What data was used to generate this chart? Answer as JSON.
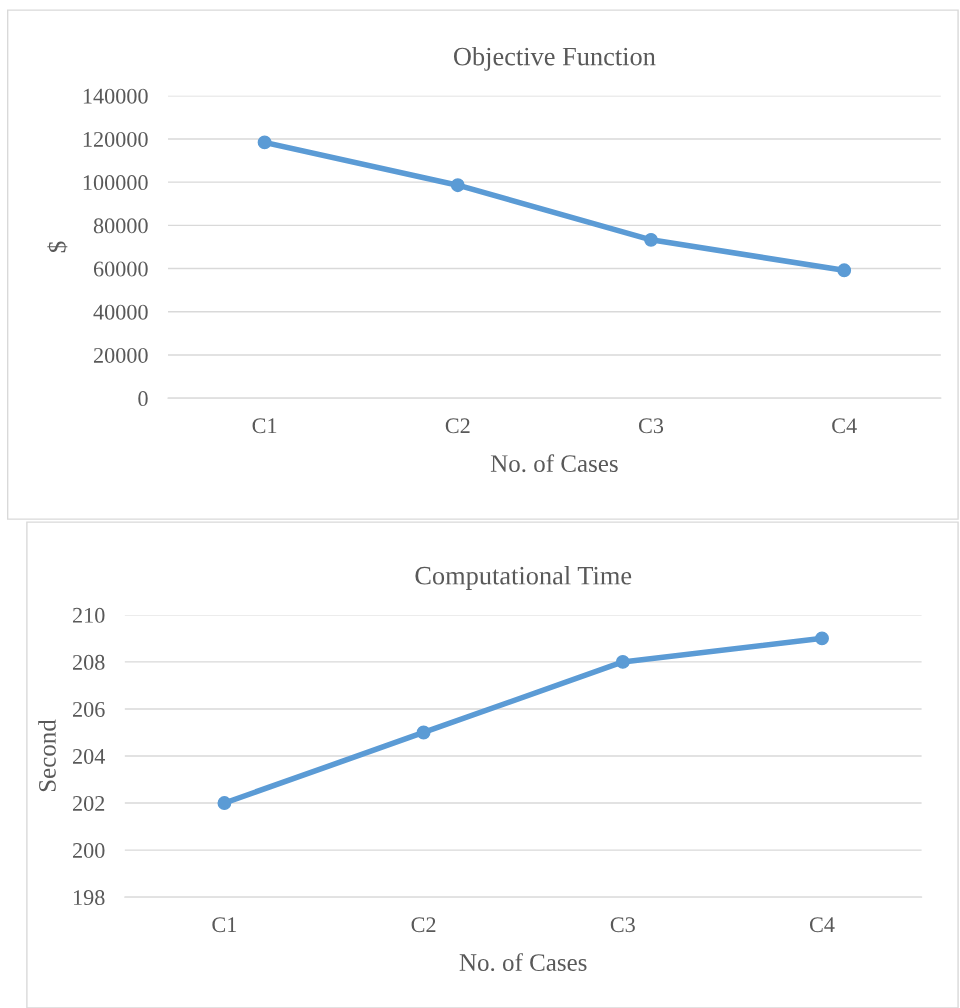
{
  "chart_data": [
    {
      "type": "line",
      "title": "Objective Function",
      "xlabel": "No. of Cases",
      "ylabel": "$",
      "categories": [
        "C1",
        "C2",
        "C3",
        "C4"
      ],
      "series": [
        {
          "color": "#5b9bd5",
          "values": [
            118400,
            98600,
            73300,
            59200
          ]
        }
      ],
      "ylim": [
        0,
        140000
      ],
      "yticks": [
        0,
        20000,
        40000,
        60000,
        80000,
        100000,
        120000,
        140000
      ],
      "grid": "y",
      "legend": false,
      "marker": "circle",
      "line_style": "solid"
    },
    {
      "type": "line",
      "title": "Computational Time",
      "xlabel": "No. of Cases",
      "ylabel": "Second",
      "categories": [
        "C1",
        "C2",
        "C3",
        "C4"
      ],
      "series": [
        {
          "color": "#5b9bd5",
          "values": [
            202,
            205,
            208,
            209
          ]
        }
      ],
      "ylim": [
        198,
        210
      ],
      "yticks": [
        198,
        200,
        202,
        204,
        206,
        208,
        210
      ],
      "grid": "y",
      "legend": false,
      "marker": "circle",
      "line_style": "solid"
    }
  ]
}
